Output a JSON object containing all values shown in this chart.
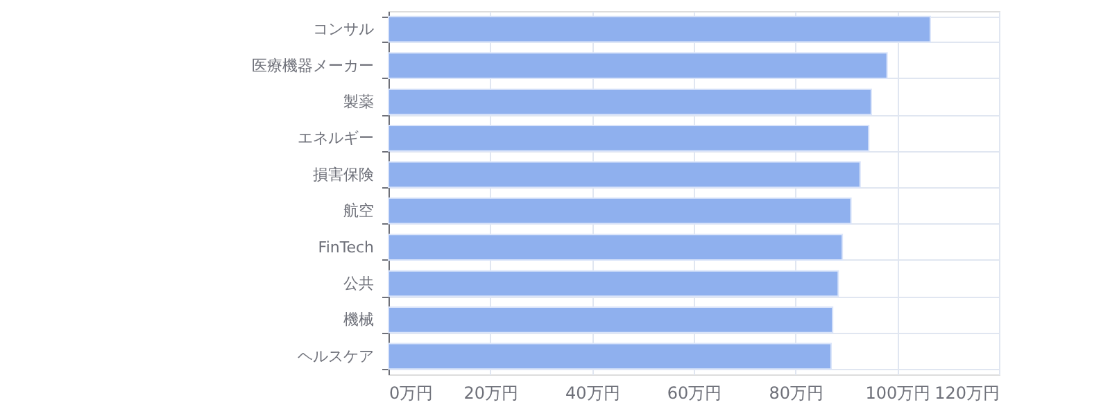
{
  "chart_data": {
    "type": "bar",
    "orientation": "horizontal",
    "categories": [
      "コンサル",
      "医療機器メーカー",
      "製薬",
      "エネルギー",
      "損害保険",
      "航空",
      "FinTech",
      "公共",
      "機械",
      "ヘルスケア"
    ],
    "values": [
      106.5,
      98.0,
      94.9,
      94.4,
      92.7,
      90.9,
      89.2,
      88.4,
      87.3,
      87.0
    ],
    "color": "#8fb0ee",
    "xlim": [
      0,
      120
    ],
    "xticks": [
      {
        "value": 0,
        "label": "0万円"
      },
      {
        "value": 20,
        "label": "20万円"
      },
      {
        "value": 40,
        "label": "40万円"
      },
      {
        "value": 60,
        "label": "60万円"
      },
      {
        "value": 80,
        "label": "80万円"
      },
      {
        "value": 100,
        "label": "100万円"
      },
      {
        "value": 120,
        "label": "120万円"
      }
    ],
    "grid": true
  }
}
